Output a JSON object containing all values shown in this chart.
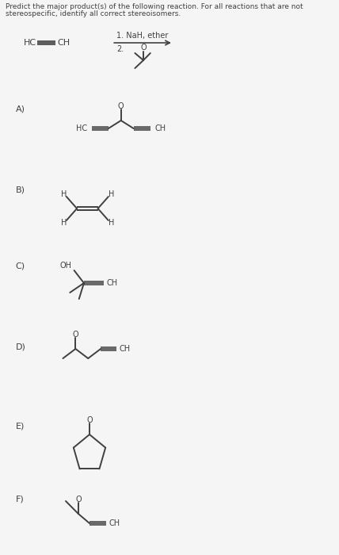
{
  "title_line1": "Predict the major product(s) of the following reaction. For all reactions that are not",
  "title_line2": "stereospecific, identify all correct stereoisomers.",
  "background_color": "#f5f5f5",
  "text_color": "#404040",
  "fig_width": 4.28,
  "fig_height": 7.0,
  "dpi": 100,
  "sections": [
    {
      "label": "A)",
      "y_label": 570
    },
    {
      "label": "B)",
      "y_label": 460
    },
    {
      "label": "C)",
      "y_label": 360
    },
    {
      "label": "D)",
      "y_label": 255
    },
    {
      "label": "E)",
      "y_label": 155
    },
    {
      "label": "F)",
      "y_label": 55
    }
  ]
}
